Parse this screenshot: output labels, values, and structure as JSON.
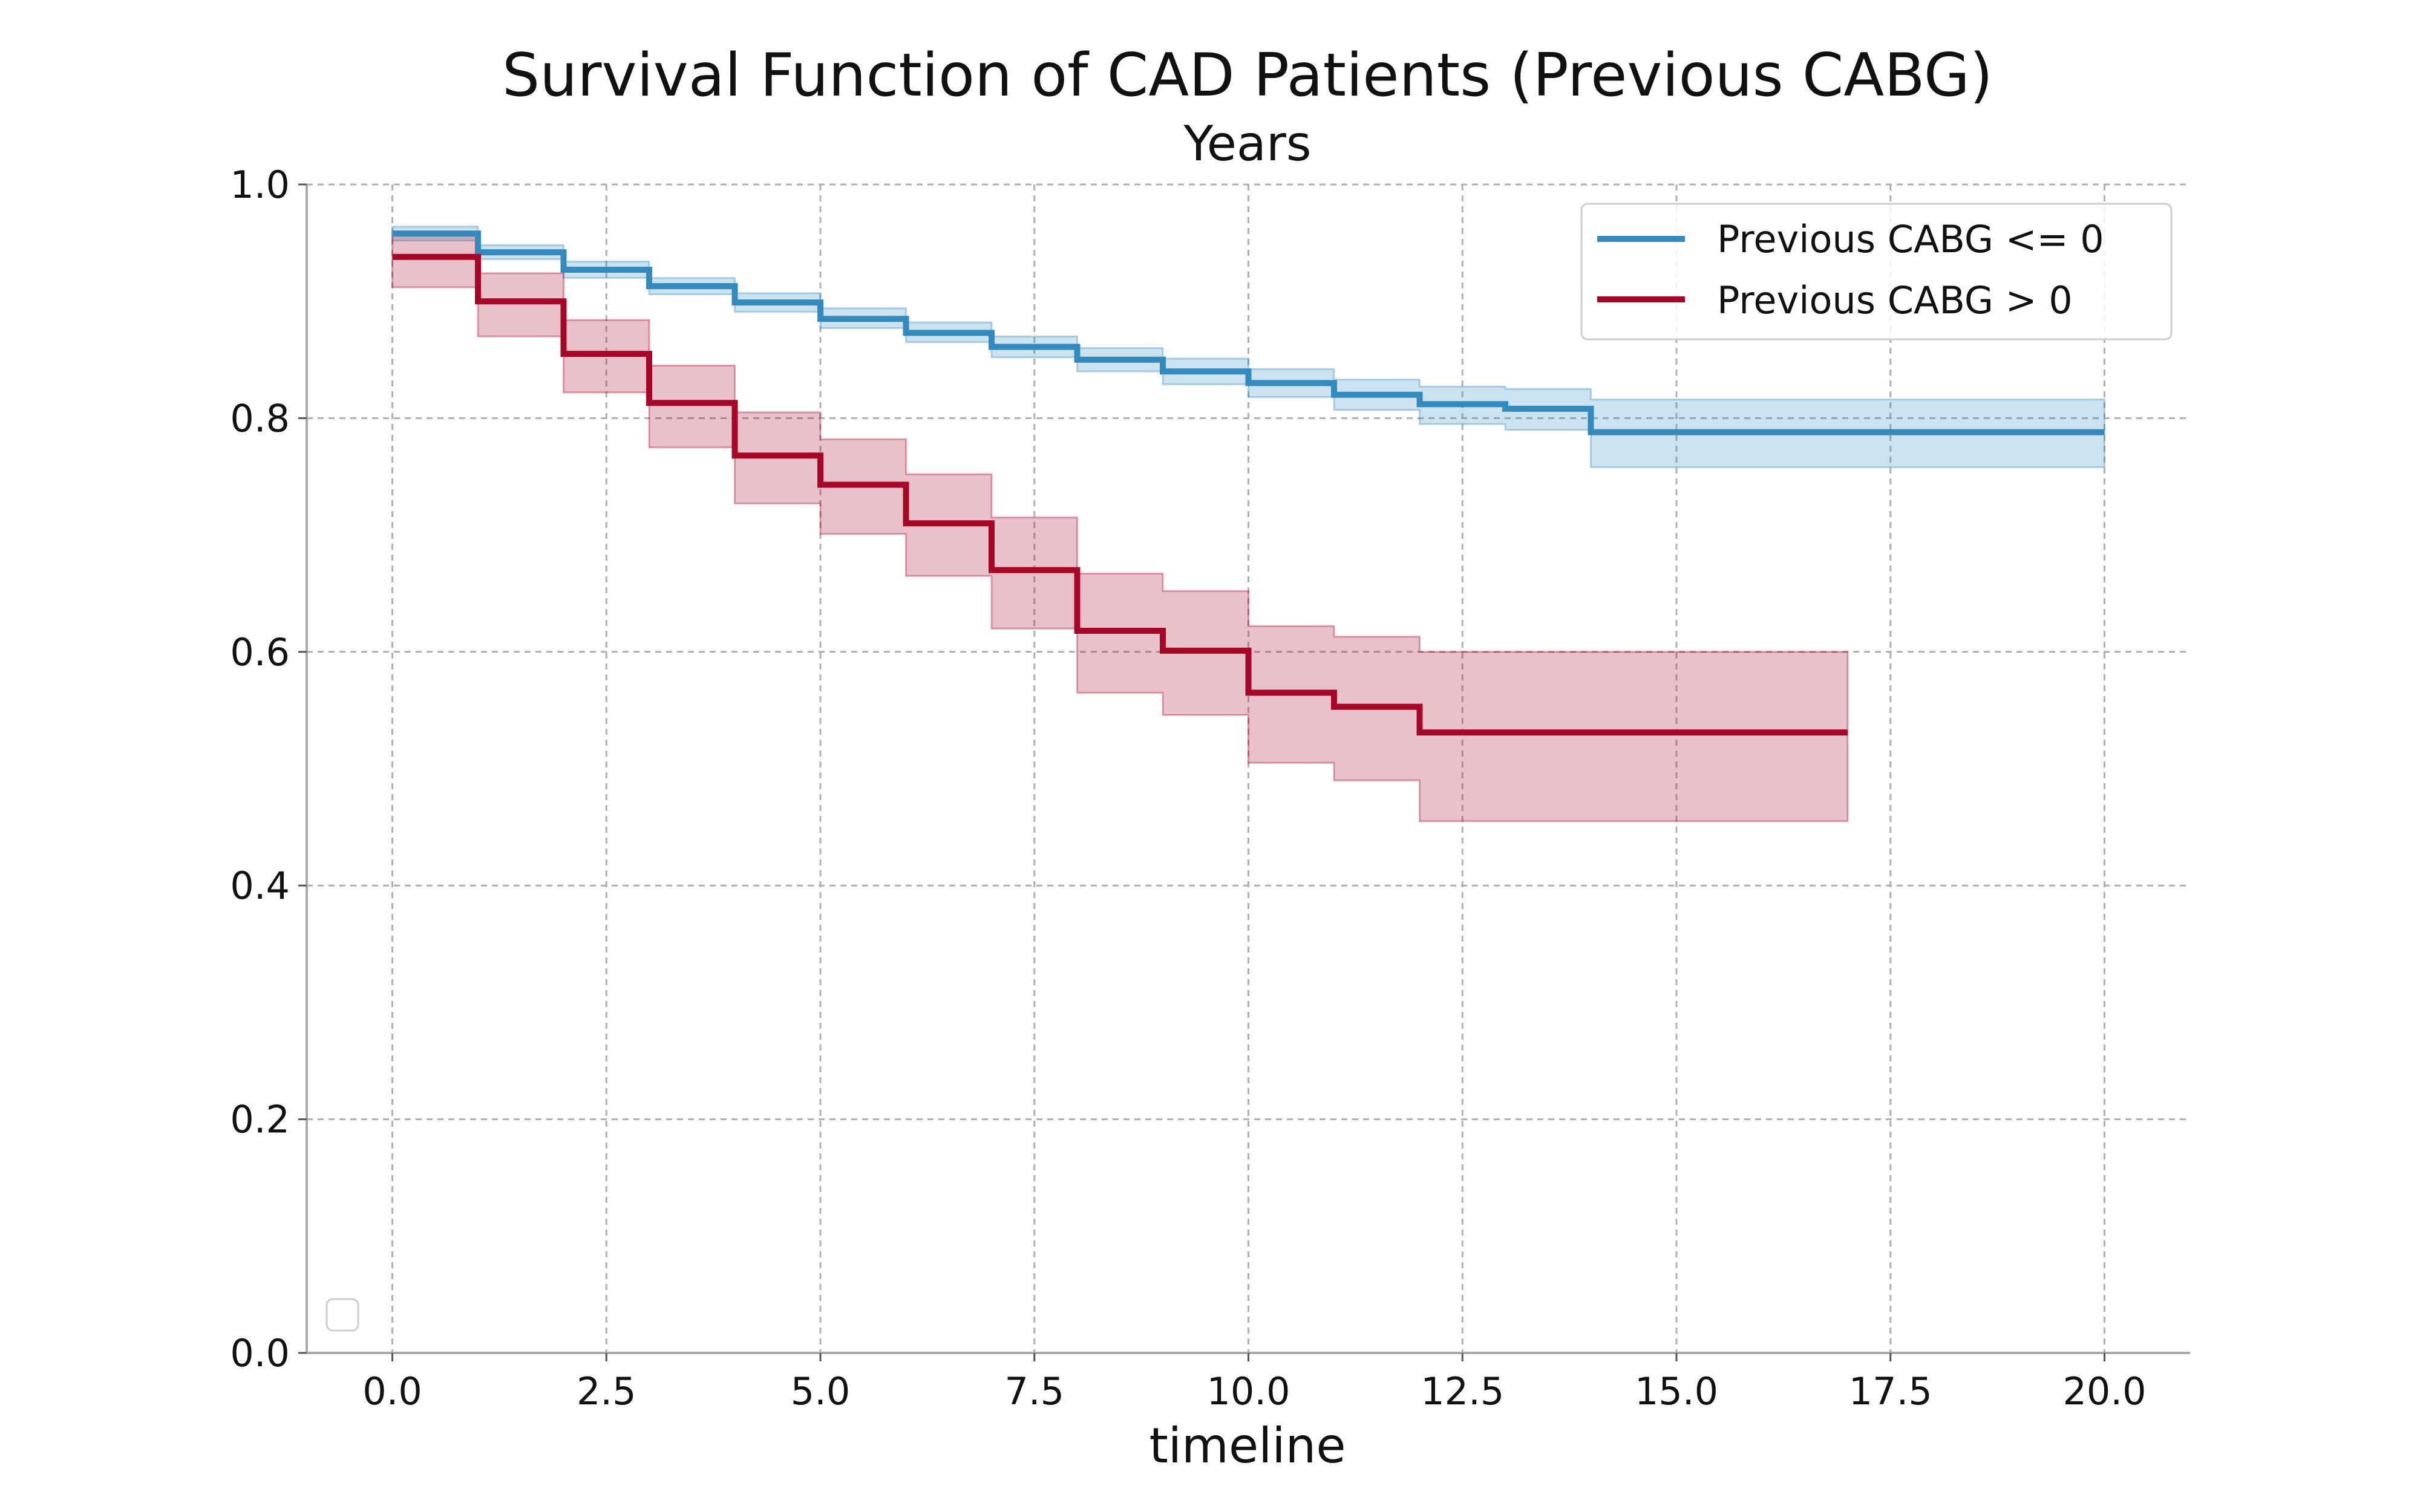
{
  "chart_data": {
    "type": "line",
    "title": "Survival Function of CAD Patients (Previous CABG)",
    "subtitle": "Years",
    "xlabel": "timeline",
    "ylabel": "",
    "xlim": [
      -1,
      21
    ],
    "ylim": [
      0,
      1.0
    ],
    "x_ticks": [
      0,
      2.5,
      5,
      7.5,
      10,
      12.5,
      15,
      17.5,
      20
    ],
    "x_tick_labels": [
      "0.0",
      "2.5",
      "5.0",
      "7.5",
      "10.0",
      "12.5",
      "15.0",
      "17.5",
      "20.0"
    ],
    "y_ticks": [
      0,
      0.2,
      0.4,
      0.6,
      0.8,
      1.0
    ],
    "y_tick_labels": [
      "0.0",
      "0.2",
      "0.4",
      "0.6",
      "0.8",
      "1.0"
    ],
    "grid": true,
    "legend_position": "top-right",
    "step": "post",
    "series": [
      {
        "name": "Previous CABG <= 0",
        "color": "#348ABD",
        "band_color": "#348ABD",
        "x": [
          0,
          1,
          2,
          3,
          4,
          5,
          6,
          7,
          8,
          9,
          10,
          11,
          12,
          13,
          14,
          20
        ],
        "values": [
          0.958,
          0.942,
          0.927,
          0.913,
          0.899,
          0.885,
          0.873,
          0.861,
          0.85,
          0.84,
          0.83,
          0.82,
          0.812,
          0.808,
          0.788,
          0.788
        ],
        "ci_lower": [
          0.952,
          0.936,
          0.92,
          0.906,
          0.891,
          0.877,
          0.865,
          0.852,
          0.84,
          0.829,
          0.818,
          0.807,
          0.795,
          0.79,
          0.758,
          0.758
        ],
        "ci_upper": [
          0.964,
          0.948,
          0.934,
          0.92,
          0.907,
          0.894,
          0.882,
          0.87,
          0.86,
          0.851,
          0.842,
          0.833,
          0.827,
          0.825,
          0.816,
          0.816
        ]
      },
      {
        "name": "Previous CABG > 0",
        "color": "#A60628",
        "band_color": "#A60628",
        "x": [
          0,
          1,
          2,
          3,
          4,
          5,
          6,
          7,
          8,
          9,
          10,
          11,
          12,
          17
        ],
        "values": [
          0.938,
          0.9,
          0.855,
          0.813,
          0.768,
          0.743,
          0.71,
          0.67,
          0.618,
          0.601,
          0.565,
          0.553,
          0.531,
          0.531
        ],
        "ci_lower": [
          0.912,
          0.87,
          0.822,
          0.775,
          0.727,
          0.701,
          0.665,
          0.62,
          0.565,
          0.546,
          0.505,
          0.49,
          0.455,
          0.455
        ],
        "ci_upper": [
          0.957,
          0.924,
          0.884,
          0.845,
          0.805,
          0.782,
          0.752,
          0.715,
          0.667,
          0.652,
          0.622,
          0.613,
          0.6,
          0.6
        ]
      }
    ]
  }
}
